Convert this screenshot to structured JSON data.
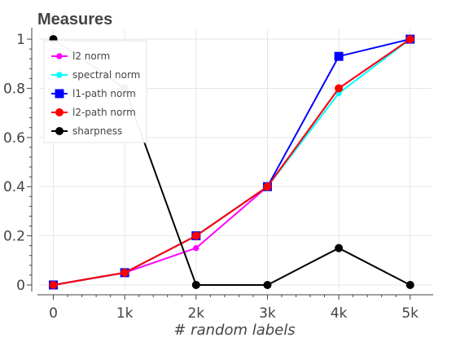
{
  "chart_data": {
    "type": "line",
    "title": "Measures",
    "xlabel": "# random labels",
    "ylabel": "",
    "categories": [
      "0",
      "1k",
      "2k",
      "3k",
      "4k",
      "5k"
    ],
    "x": [
      0,
      1000,
      2000,
      3000,
      4000,
      5000
    ],
    "xlim": [
      -200,
      5300
    ],
    "ylim": [
      -0.02,
      1.04
    ],
    "y_ticks": [
      0,
      0.2,
      0.4,
      0.6,
      0.8,
      1
    ],
    "y_tick_labels": [
      "0",
      "0.2",
      "0.4",
      "0.6",
      "0.8",
      "1"
    ],
    "grid": true,
    "legend_position": "top-left",
    "series": [
      {
        "name": "l2 norm",
        "color": "#ff00ff",
        "marker": "circle",
        "values": [
          0,
          0.05,
          0.15,
          0.4,
          0.8,
          1
        ]
      },
      {
        "name": "spectral norm",
        "color": "#00ffff",
        "marker": "circle",
        "values": [
          0,
          0.05,
          0.2,
          0.4,
          0.78,
          1
        ]
      },
      {
        "name": "l1-path norm",
        "color": "#0000ff",
        "marker": "square",
        "values": [
          0,
          0.05,
          0.2,
          0.4,
          0.93,
          1
        ]
      },
      {
        "name": "l2-path norm",
        "color": "#ff0000",
        "marker": "circle",
        "values": [
          0,
          0.05,
          0.2,
          0.4,
          0.8,
          1
        ]
      },
      {
        "name": "sharpness",
        "color": "#000000",
        "marker": "circle",
        "values": [
          1,
          0.8,
          0,
          0,
          0.15,
          0
        ]
      }
    ]
  }
}
